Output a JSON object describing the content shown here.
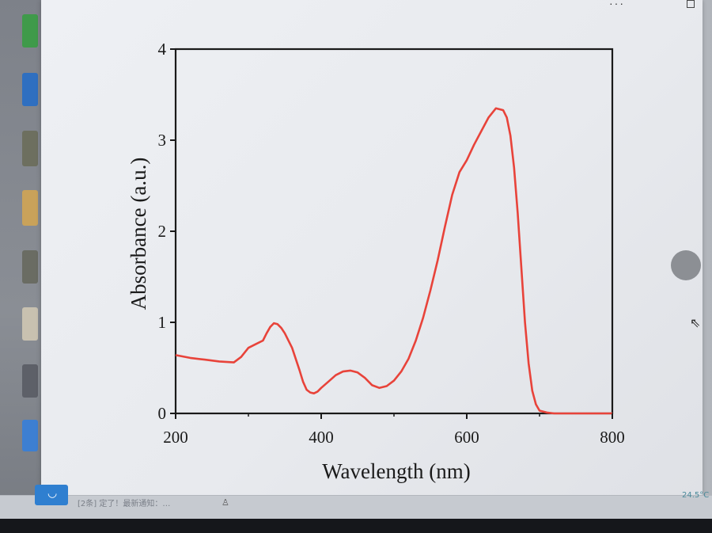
{
  "notification": {
    "text": "[2条] 定了！最新通知：…",
    "icon": "pin-icon"
  },
  "corner_label": "24.5°C",
  "colors": {
    "curve": "#e8433a",
    "axis": "#1a1a1a"
  },
  "chart_data": {
    "type": "line",
    "title": "",
    "xlabel": "Wavelength (nm)",
    "ylabel": "Absorbance (a.u.)",
    "xlim": [
      200,
      800
    ],
    "ylim": [
      0,
      4
    ],
    "xticks": [
      "200",
      "400",
      "600",
      "800"
    ],
    "xtick_values": [
      200,
      400,
      600,
      800
    ],
    "yticks": [
      "0",
      "1",
      "2",
      "3",
      "4"
    ],
    "ytick_values": [
      0,
      1,
      2,
      3,
      4
    ],
    "grid": false,
    "legend": "none",
    "series": [
      {
        "x": [
          200,
          220,
          240,
          260,
          280,
          290,
          300,
          310,
          320,
          325,
          330,
          335,
          340,
          345,
          350,
          360,
          370,
          375,
          380,
          385,
          390,
          395,
          400,
          410,
          420,
          430,
          440,
          450,
          460,
          470,
          480,
          490,
          500,
          510,
          520,
          530,
          540,
          550,
          560,
          570,
          580,
          590,
          600,
          610,
          620,
          630,
          640,
          650,
          655,
          660,
          665,
          670,
          675,
          680,
          685,
          690,
          695,
          700,
          710,
          720,
          740,
          760,
          780,
          800
        ],
        "y": [
          0.64,
          0.61,
          0.59,
          0.57,
          0.56,
          0.62,
          0.72,
          0.76,
          0.8,
          0.88,
          0.95,
          0.99,
          0.98,
          0.94,
          0.88,
          0.72,
          0.48,
          0.35,
          0.26,
          0.23,
          0.22,
          0.24,
          0.28,
          0.35,
          0.42,
          0.46,
          0.47,
          0.45,
          0.39,
          0.31,
          0.28,
          0.3,
          0.36,
          0.46,
          0.6,
          0.8,
          1.05,
          1.35,
          1.68,
          2.05,
          2.4,
          2.65,
          2.78,
          2.95,
          3.1,
          3.25,
          3.35,
          3.33,
          3.25,
          3.05,
          2.7,
          2.2,
          1.6,
          1.0,
          0.55,
          0.25,
          0.1,
          0.03,
          0.01,
          0.0,
          0.0,
          0.0,
          0.0,
          0.0
        ]
      }
    ]
  }
}
